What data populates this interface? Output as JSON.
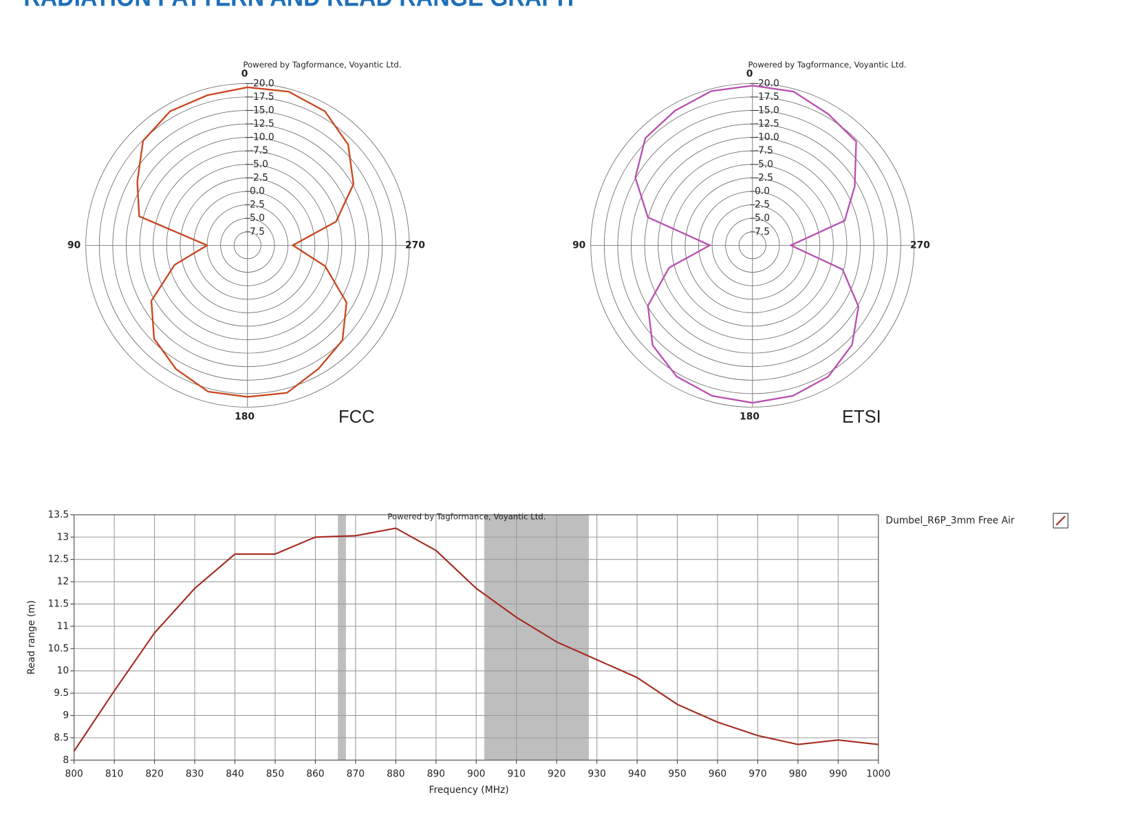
{
  "header": {
    "title": "RADIATION PATTERN AND READ RANGE GRAPH"
  },
  "chart_data": [
    {
      "type": "polar",
      "watermark": "Powered by Tagformance, Voyantic Ltd.",
      "annotation": "FCC",
      "angle_ticks": [
        0,
        90,
        180,
        270
      ],
      "rlim": [
        10,
        -20
      ],
      "rticks": [
        7.5,
        {
          "value": 5,
          "label": "5.0"
        },
        2.5,
        {
          "value": 0,
          "label": "0.0"
        },
        -2.5,
        {
          "value": -5,
          "label": "-5.0"
        },
        -7.5,
        {
          "value": -10,
          "label": "-10.0"
        },
        -12.5,
        {
          "value": -15,
          "label": "-15.0"
        },
        -17.5,
        {
          "value": -20,
          "label": "-20.0"
        }
      ],
      "angles": [
        0,
        15,
        30,
        45,
        60,
        75,
        90,
        105,
        120,
        135,
        150,
        165,
        180,
        195,
        210,
        225,
        240,
        255,
        270,
        285,
        300,
        315,
        330,
        345
      ],
      "series": [
        {
          "color": "#c8461e",
          "values": [
            -19.3,
            -18.8,
            -18.7,
            -17.4,
            -13.6,
            -10.8,
            2.5,
            -4.0,
            -10.6,
            -14.5,
            -16.5,
            -18.1,
            -18.1,
            -18.3,
            -16.4,
            -14.9,
            -11.2,
            -4.9,
            1.6,
            -7.0,
            -12.7,
            -16.4,
            -18.7,
            -19.5
          ]
        }
      ]
    },
    {
      "type": "polar",
      "watermark": "Powered by Tagformance, Voyantic Ltd.",
      "annotation": "ETSI",
      "angle_ticks": [
        0,
        90,
        180,
        270
      ],
      "rlim": [
        10,
        -20
      ],
      "rticks": [
        7.5,
        {
          "value": 5,
          "label": "5.0"
        },
        2.5,
        {
          "value": 0,
          "label": "0.0"
        },
        -2.5,
        {
          "value": -5,
          "label": "-5.0"
        },
        -7.5,
        {
          "value": -10,
          "label": "-10.0"
        },
        -12.5,
        {
          "value": -15,
          "label": "-15.0"
        },
        -17.5,
        {
          "value": -20,
          "label": "-20.0"
        }
      ],
      "angles": [
        0,
        15,
        30,
        45,
        60,
        75,
        90,
        105,
        120,
        135,
        150,
        165,
        180,
        195,
        210,
        225,
        240,
        255,
        270,
        285,
        300,
        315,
        330,
        345
      ],
      "series": [
        {
          "color": "#b84fb0",
          "values": [
            -19.6,
            -19.6,
            -18.8,
            -18.1,
            -15.1,
            -10.1,
            2.1,
            -6.0,
            -12.4,
            -16.2,
            -18.1,
            -18.9,
            -19.2,
            -18.9,
            -18.1,
            -16.1,
            -12.7,
            -7.3,
            2.9,
            -7.7,
            -11.9,
            -17.2,
            -18.1,
            -19.5
          ]
        }
      ]
    },
    {
      "type": "line",
      "watermark": "Powered by Tagformance, Voyantic Ltd.",
      "xlabel": "Frequency (MHz)",
      "ylabel": "Read range (m)",
      "x": [
        800,
        810,
        820,
        830,
        840,
        850,
        860,
        870,
        880,
        890,
        900,
        910,
        920,
        930,
        940,
        950,
        960,
        970,
        980,
        990,
        1000
      ],
      "xlim": [
        800,
        1000
      ],
      "ylim": [
        8,
        13.5
      ],
      "xticks": [
        800,
        810,
        820,
        830,
        840,
        850,
        860,
        870,
        880,
        890,
        900,
        910,
        920,
        930,
        940,
        950,
        960,
        970,
        980,
        990,
        1000
      ],
      "yticks": [
        13.5,
        13,
        12.5,
        12,
        11.5,
        11,
        10.5,
        10,
        9.5,
        9,
        8.5,
        8
      ],
      "grid": true,
      "bands": [
        [
          865.6,
          867.6
        ],
        [
          902,
          928
        ]
      ],
      "band_color": "#bebebe",
      "legend": "right",
      "series": [
        {
          "name": "Dumbel_R6P_3mm Free Air",
          "color": "#a52a1e",
          "values": [
            8.2,
            9.55,
            10.85,
            11.85,
            12.62,
            12.62,
            13.0,
            13.03,
            13.2,
            12.7,
            11.85,
            11.2,
            10.65,
            10.25,
            9.85,
            9.25,
            8.85,
            8.55,
            8.35,
            8.45,
            8.35
          ]
        }
      ]
    }
  ]
}
